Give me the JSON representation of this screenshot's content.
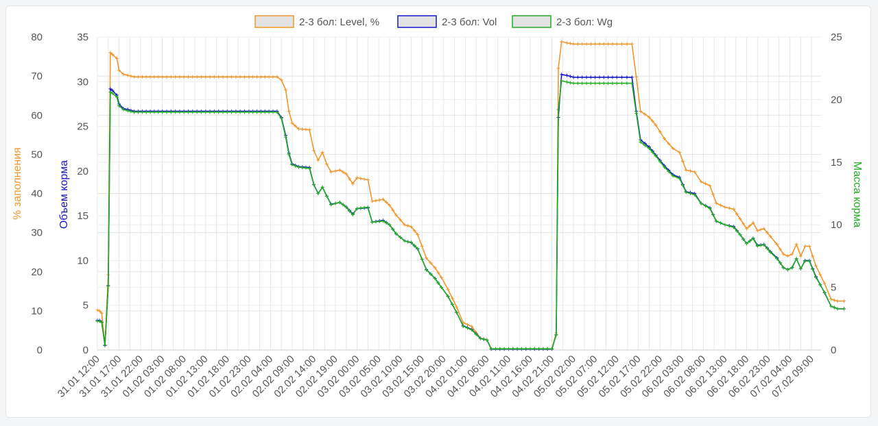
{
  "chart_data": {
    "type": "line",
    "categories": [
      "31.01 12:00",
      "31.01 17:00",
      "31.01 22:00",
      "01.02 03:00",
      "01.02 08:00",
      "01.02 13:00",
      "01.02 18:00",
      "01.02 23:00",
      "02.02 04:00",
      "02.02 09:00",
      "02.02 14:00",
      "02.02 19:00",
      "03.02 00:00",
      "03.02 05:00",
      "03.02 10:00",
      "03.02 15:00",
      "03.02 20:00",
      "04.02 01:00",
      "04.02 06:00",
      "04.02 11:00",
      "04.02 16:00",
      "04.02 21:00",
      "05.02 02:00",
      "05.02 07:00",
      "05.02 12:00",
      "05.02 17:00",
      "05.02 22:00",
      "06.02 03:00",
      "06.02 08:00",
      "06.02 13:00",
      "06.02 18:00",
      "06.02 23:00",
      "07.02 04:00",
      "07.02 09:00"
    ],
    "legend_position": "top",
    "grid": true,
    "axes": {
      "left_outer": {
        "label": "% заполнения",
        "ticks": [
          "0",
          "10",
          "20",
          "30",
          "40",
          "50",
          "60",
          "70",
          "80"
        ],
        "range": [
          0,
          80
        ],
        "color": "#f0962b"
      },
      "left_inner": {
        "label": "Объем корма",
        "ticks": [
          "0",
          "5",
          "10",
          "15",
          "20",
          "25",
          "30",
          "35"
        ],
        "range": [
          0,
          35
        ],
        "color": "#1717c9"
      },
      "right": {
        "label": "Масса корма",
        "ticks": [
          "0",
          "5",
          "10",
          "15",
          "20",
          "25"
        ],
        "range": [
          0,
          25
        ],
        "color": "#21ad21"
      }
    },
    "series": [
      {
        "name": "2-3 бол: Level, %",
        "axis": "left_outer",
        "color": "#f0962b",
        "points": [
          [
            0,
            10.2
          ],
          [
            0.1,
            10.0
          ],
          [
            0.2,
            9.4
          ],
          [
            0.35,
            1.1
          ],
          [
            0.5,
            19.2
          ],
          [
            0.6,
            76.0
          ],
          [
            0.7,
            75.5
          ],
          [
            0.9,
            74.5
          ],
          [
            1.0,
            71.5
          ],
          [
            1.2,
            70.5
          ],
          [
            1.4,
            70.2
          ],
          [
            1.7,
            69.8
          ],
          [
            3,
            69.8
          ],
          [
            5,
            69.8
          ],
          [
            7,
            69.8
          ],
          [
            8.3,
            69.8
          ],
          [
            8.5,
            69.0
          ],
          [
            8.7,
            66.5
          ],
          [
            8.85,
            61.0
          ],
          [
            9.0,
            58.0
          ],
          [
            9.3,
            56.5
          ],
          [
            9.8,
            56.3
          ],
          [
            10.0,
            51.0
          ],
          [
            10.2,
            48.5
          ],
          [
            10.4,
            50.5
          ],
          [
            10.6,
            47.5
          ],
          [
            10.8,
            45.5
          ],
          [
            11.2,
            46.0
          ],
          [
            11.5,
            45.0
          ],
          [
            11.8,
            42.5
          ],
          [
            12.0,
            44.0
          ],
          [
            12.5,
            43.5
          ],
          [
            12.7,
            38.0
          ],
          [
            13.2,
            38.5
          ],
          [
            13.5,
            37.0
          ],
          [
            13.8,
            34.5
          ],
          [
            14.2,
            32.0
          ],
          [
            14.5,
            31.5
          ],
          [
            14.8,
            29.5
          ],
          [
            15.2,
            23.5
          ],
          [
            15.6,
            21.0
          ],
          [
            15.9,
            18.5
          ],
          [
            16.2,
            15.5
          ],
          [
            16.6,
            11.0
          ],
          [
            16.9,
            7.0
          ],
          [
            17.3,
            6.0
          ],
          [
            17.7,
            3.0
          ],
          [
            18.0,
            2.6
          ],
          [
            18.2,
            0.3
          ],
          [
            19,
            0.3
          ],
          [
            20,
            0.3
          ],
          [
            21.0,
            0.3
          ],
          [
            21.2,
            4.4
          ],
          [
            21.3,
            72.0
          ],
          [
            21.45,
            78.8
          ],
          [
            21.7,
            78.5
          ],
          [
            22.0,
            78.2
          ],
          [
            23,
            78.2
          ],
          [
            24,
            78.2
          ],
          [
            24.7,
            78.2
          ],
          [
            24.9,
            69.8
          ],
          [
            25.1,
            61.0
          ],
          [
            25.5,
            59.5
          ],
          [
            25.8,
            57.5
          ],
          [
            26.2,
            54.0
          ],
          [
            26.6,
            51.5
          ],
          [
            26.9,
            50.5
          ],
          [
            27.2,
            46.0
          ],
          [
            27.6,
            45.5
          ],
          [
            27.9,
            43.0
          ],
          [
            28.3,
            42.0
          ],
          [
            28.6,
            37.5
          ],
          [
            29.0,
            36.5
          ],
          [
            29.4,
            36.0
          ],
          [
            29.7,
            33.5
          ],
          [
            30.0,
            31.0
          ],
          [
            30.3,
            32.5
          ],
          [
            30.5,
            30.5
          ],
          [
            30.8,
            31.0
          ],
          [
            31.1,
            29.0
          ],
          [
            31.4,
            27.0
          ],
          [
            31.7,
            24.5
          ],
          [
            31.9,
            24.0
          ],
          [
            32.1,
            24.5
          ],
          [
            32.3,
            27.0
          ],
          [
            32.5,
            24.0
          ],
          [
            32.7,
            26.5
          ],
          [
            32.9,
            26.5
          ],
          [
            33.2,
            21.5
          ],
          [
            33.6,
            17.0
          ],
          [
            33.9,
            13.0
          ],
          [
            34.2,
            12.5
          ],
          [
            34.5,
            12.5
          ]
        ]
      },
      {
        "name": "2-3 бол: Vol",
        "axis": "left_inner",
        "color": "#1717c9",
        "points": [
          [
            0,
            3.3
          ],
          [
            0.1,
            3.3
          ],
          [
            0.2,
            3.1
          ],
          [
            0.35,
            0.5
          ],
          [
            0.5,
            7.2
          ],
          [
            0.6,
            29.2
          ],
          [
            0.7,
            29.0
          ],
          [
            0.9,
            28.5
          ],
          [
            1.0,
            27.5
          ],
          [
            1.2,
            27.0
          ],
          [
            1.4,
            26.9
          ],
          [
            1.7,
            26.7
          ],
          [
            3,
            26.7
          ],
          [
            5,
            26.7
          ],
          [
            7,
            26.7
          ],
          [
            8.3,
            26.7
          ],
          [
            8.5,
            26.0
          ],
          [
            8.7,
            24.0
          ],
          [
            8.85,
            22.0
          ],
          [
            9.0,
            20.8
          ],
          [
            9.3,
            20.5
          ],
          [
            9.8,
            20.4
          ],
          [
            10.0,
            18.5
          ],
          [
            10.2,
            17.5
          ],
          [
            10.4,
            18.2
          ],
          [
            10.6,
            17.2
          ],
          [
            10.8,
            16.3
          ],
          [
            11.2,
            16.5
          ],
          [
            11.5,
            16.0
          ],
          [
            11.8,
            15.2
          ],
          [
            12.0,
            15.8
          ],
          [
            12.5,
            15.9
          ],
          [
            12.7,
            14.3
          ],
          [
            13.2,
            14.5
          ],
          [
            13.5,
            14.0
          ],
          [
            13.8,
            13.0
          ],
          [
            14.2,
            12.2
          ],
          [
            14.5,
            12.0
          ],
          [
            14.8,
            11.3
          ],
          [
            15.2,
            9.0
          ],
          [
            15.6,
            8.0
          ],
          [
            15.9,
            7.0
          ],
          [
            16.2,
            6.0
          ],
          [
            16.6,
            4.2
          ],
          [
            16.9,
            2.7
          ],
          [
            17.3,
            2.3
          ],
          [
            17.7,
            1.3
          ],
          [
            18.0,
            1.1
          ],
          [
            18.2,
            0.1
          ],
          [
            19,
            0.1
          ],
          [
            20,
            0.1
          ],
          [
            21.0,
            0.1
          ],
          [
            21.2,
            1.7
          ],
          [
            21.3,
            26.0
          ],
          [
            21.45,
            30.8
          ],
          [
            21.7,
            30.7
          ],
          [
            22.0,
            30.5
          ],
          [
            23,
            30.5
          ],
          [
            24,
            30.5
          ],
          [
            24.7,
            30.5
          ],
          [
            24.9,
            26.7
          ],
          [
            25.1,
            23.5
          ],
          [
            25.5,
            22.7
          ],
          [
            25.8,
            21.8
          ],
          [
            26.2,
            20.6
          ],
          [
            26.6,
            19.6
          ],
          [
            26.9,
            19.3
          ],
          [
            27.2,
            17.7
          ],
          [
            27.6,
            17.5
          ],
          [
            27.9,
            16.4
          ],
          [
            28.3,
            15.9
          ],
          [
            28.6,
            14.4
          ],
          [
            29.0,
            14.0
          ],
          [
            29.4,
            13.8
          ],
          [
            29.7,
            12.9
          ],
          [
            30.0,
            11.9
          ],
          [
            30.3,
            12.5
          ],
          [
            30.5,
            11.7
          ],
          [
            30.8,
            11.8
          ],
          [
            31.1,
            11.0
          ],
          [
            31.4,
            10.3
          ],
          [
            31.7,
            9.2
          ],
          [
            31.9,
            9.0
          ],
          [
            32.1,
            9.2
          ],
          [
            32.3,
            10.2
          ],
          [
            32.5,
            9.1
          ],
          [
            32.7,
            10.0
          ],
          [
            32.9,
            10.0
          ],
          [
            33.2,
            8.2
          ],
          [
            33.6,
            6.4
          ],
          [
            33.9,
            4.9
          ],
          [
            34.2,
            4.6
          ],
          [
            34.5,
            4.6
          ]
        ]
      },
      {
        "name": "2-3 бол: Wg",
        "axis": "right",
        "color": "#21ad21",
        "points": [
          [
            0,
            2.3
          ],
          [
            0.1,
            2.3
          ],
          [
            0.2,
            2.2
          ],
          [
            0.35,
            0.4
          ],
          [
            0.5,
            5.1
          ],
          [
            0.6,
            20.6
          ],
          [
            0.7,
            20.5
          ],
          [
            0.9,
            20.2
          ],
          [
            1.0,
            19.5
          ],
          [
            1.2,
            19.2
          ],
          [
            1.4,
            19.1
          ],
          [
            1.7,
            19.0
          ],
          [
            3,
            19.0
          ],
          [
            5,
            19.0
          ],
          [
            7,
            19.0
          ],
          [
            8.3,
            19.0
          ],
          [
            8.5,
            18.5
          ],
          [
            8.7,
            17.0
          ],
          [
            8.85,
            15.6
          ],
          [
            9.0,
            14.8
          ],
          [
            9.3,
            14.6
          ],
          [
            9.8,
            14.5
          ],
          [
            10.0,
            13.2
          ],
          [
            10.2,
            12.5
          ],
          [
            10.4,
            13.0
          ],
          [
            10.6,
            12.3
          ],
          [
            10.8,
            11.6
          ],
          [
            11.2,
            11.8
          ],
          [
            11.5,
            11.4
          ],
          [
            11.8,
            10.8
          ],
          [
            12.0,
            11.3
          ],
          [
            12.5,
            11.4
          ],
          [
            12.7,
            10.2
          ],
          [
            13.2,
            10.3
          ],
          [
            13.5,
            10.0
          ],
          [
            13.8,
            9.3
          ],
          [
            14.2,
            8.7
          ],
          [
            14.5,
            8.6
          ],
          [
            14.8,
            8.1
          ],
          [
            15.2,
            6.4
          ],
          [
            15.6,
            5.7
          ],
          [
            15.9,
            5.0
          ],
          [
            16.2,
            4.3
          ],
          [
            16.6,
            3.0
          ],
          [
            16.9,
            1.9
          ],
          [
            17.3,
            1.6
          ],
          [
            17.7,
            0.9
          ],
          [
            18.0,
            0.8
          ],
          [
            18.2,
            0.1
          ],
          [
            19,
            0.1
          ],
          [
            20,
            0.1
          ],
          [
            21.0,
            0.1
          ],
          [
            21.2,
            1.2
          ],
          [
            21.3,
            19.2
          ],
          [
            21.45,
            21.5
          ],
          [
            21.7,
            21.4
          ],
          [
            22.0,
            21.3
          ],
          [
            23,
            21.3
          ],
          [
            24,
            21.3
          ],
          [
            24.7,
            21.3
          ],
          [
            24.9,
            18.9
          ],
          [
            25.1,
            16.6
          ],
          [
            25.5,
            16.1
          ],
          [
            25.8,
            15.5
          ],
          [
            26.2,
            14.6
          ],
          [
            26.6,
            13.9
          ],
          [
            26.9,
            13.7
          ],
          [
            27.2,
            12.6
          ],
          [
            27.6,
            12.4
          ],
          [
            27.9,
            11.7
          ],
          [
            28.3,
            11.3
          ],
          [
            28.6,
            10.3
          ],
          [
            29.0,
            10.0
          ],
          [
            29.4,
            9.8
          ],
          [
            29.7,
            9.2
          ],
          [
            30.0,
            8.5
          ],
          [
            30.3,
            8.9
          ],
          [
            30.5,
            8.3
          ],
          [
            30.8,
            8.4
          ],
          [
            31.1,
            7.8
          ],
          [
            31.4,
            7.3
          ],
          [
            31.7,
            6.6
          ],
          [
            31.9,
            6.4
          ],
          [
            32.1,
            6.6
          ],
          [
            32.3,
            7.3
          ],
          [
            32.5,
            6.5
          ],
          [
            32.7,
            7.1
          ],
          [
            32.9,
            7.1
          ],
          [
            33.2,
            5.8
          ],
          [
            33.6,
            4.6
          ],
          [
            33.9,
            3.5
          ],
          [
            34.2,
            3.3
          ],
          [
            34.5,
            3.3
          ]
        ]
      }
    ]
  }
}
